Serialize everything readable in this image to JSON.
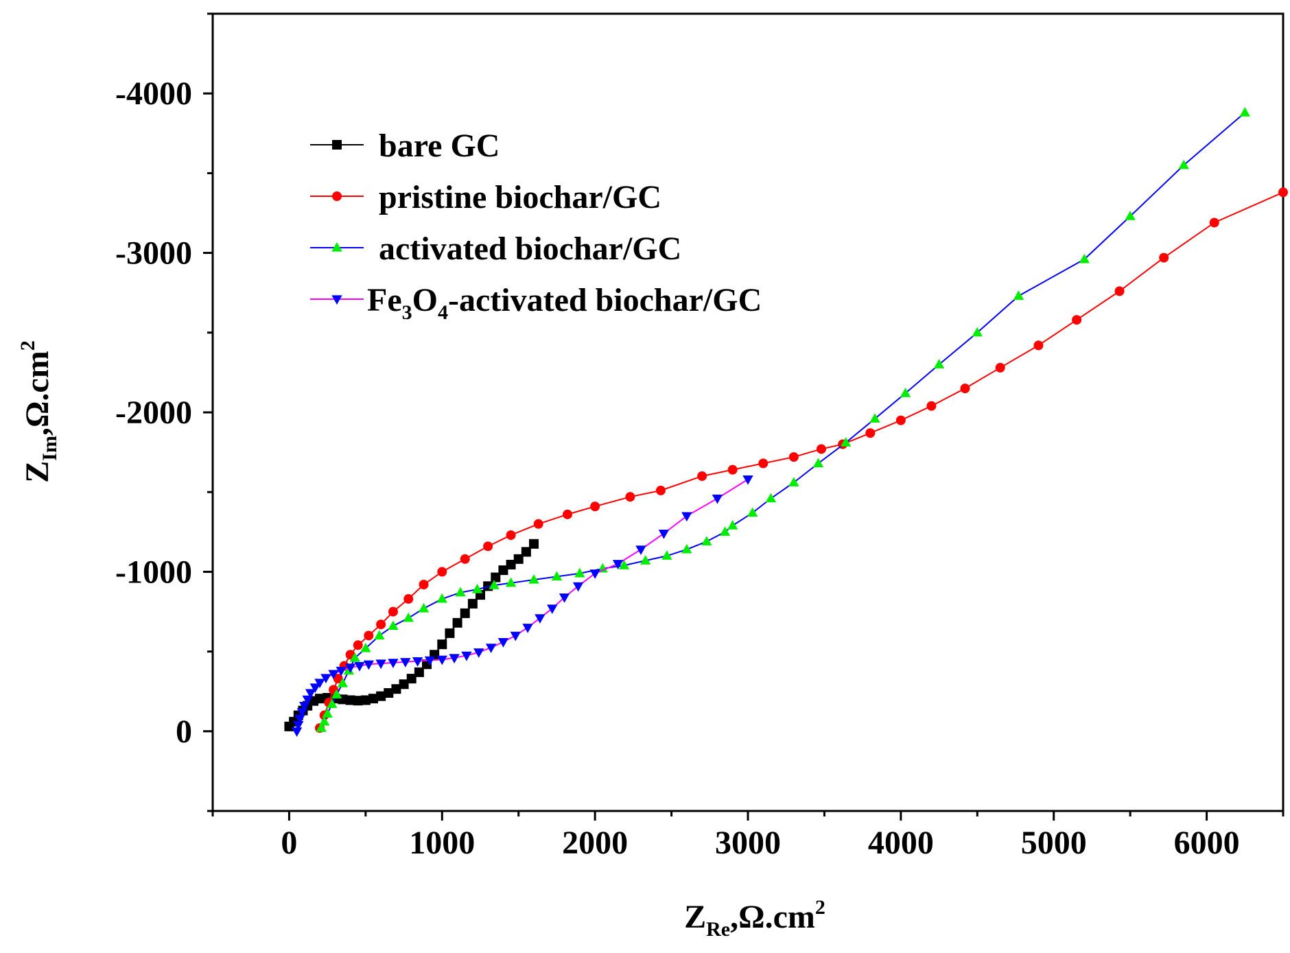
{
  "chart_data": {
    "type": "scatter",
    "title": "",
    "xlabel": {
      "main": "Z",
      "sub": "Re",
      "rest": ",Ω.cm",
      "sup": "2"
    },
    "ylabel": {
      "main": "Z",
      "sub": "Im",
      "rest": ",Ω.cm",
      "sup": "2"
    },
    "xlim": [
      -500,
      6500
    ],
    "ylim": [
      500,
      -4500
    ],
    "x_ticks": [
      0,
      1000,
      2000,
      3000,
      4000,
      5000,
      6000
    ],
    "x_tick_labels": [
      "0",
      "1000",
      "2000",
      "3000",
      "4000",
      "5000",
      "6000"
    ],
    "y_ticks": [
      0,
      -1000,
      -2000,
      -3000,
      -4000
    ],
    "y_tick_labels": [
      "0",
      "-1000",
      "-2000",
      "-3000",
      "-4000"
    ],
    "grid": false,
    "legend_position": "top-left",
    "legend": [
      {
        "label": "bare GC"
      },
      {
        "label": "pristine biochar/GC"
      },
      {
        "label": "activated biochar/GC"
      },
      {
        "label_parts": [
          "Fe",
          "3",
          "O",
          "4",
          "-activated biochar/GC"
        ]
      }
    ],
    "series": [
      {
        "name": "bare GC",
        "line_color": "#000000",
        "marker_color": "#000000",
        "marker": "square",
        "points": [
          [
            0,
            -30
          ],
          [
            30,
            -60
          ],
          [
            60,
            -100
          ],
          [
            90,
            -130
          ],
          [
            120,
            -160
          ],
          [
            160,
            -190
          ],
          [
            200,
            -205
          ],
          [
            250,
            -210
          ],
          [
            300,
            -205
          ],
          [
            350,
            -200
          ],
          [
            400,
            -195
          ],
          [
            450,
            -192
          ],
          [
            500,
            -195
          ],
          [
            550,
            -205
          ],
          [
            600,
            -220
          ],
          [
            650,
            -240
          ],
          [
            700,
            -265
          ],
          [
            750,
            -295
          ],
          [
            800,
            -330
          ],
          [
            850,
            -370
          ],
          [
            900,
            -420
          ],
          [
            950,
            -480
          ],
          [
            1000,
            -545
          ],
          [
            1050,
            -615
          ],
          [
            1100,
            -680
          ],
          [
            1150,
            -740
          ],
          [
            1200,
            -800
          ],
          [
            1250,
            -855
          ],
          [
            1300,
            -910
          ],
          [
            1350,
            -965
          ],
          [
            1400,
            -1010
          ],
          [
            1450,
            -1045
          ],
          [
            1500,
            -1080
          ],
          [
            1550,
            -1125
          ],
          [
            1600,
            -1175
          ]
        ]
      },
      {
        "name": "pristine biochar/GC",
        "line_color": "#ff0000",
        "marker_color": "#ff0000",
        "marker": "circle",
        "points": [
          [
            200,
            -20
          ],
          [
            230,
            -100
          ],
          [
            260,
            -180
          ],
          [
            290,
            -260
          ],
          [
            320,
            -330
          ],
          [
            360,
            -410
          ],
          [
            400,
            -480
          ],
          [
            450,
            -540
          ],
          [
            520,
            -600
          ],
          [
            600,
            -670
          ],
          [
            680,
            -750
          ],
          [
            780,
            -830
          ],
          [
            880,
            -920
          ],
          [
            1000,
            -1000
          ],
          [
            1150,
            -1080
          ],
          [
            1300,
            -1160
          ],
          [
            1450,
            -1230
          ],
          [
            1630,
            -1300
          ],
          [
            1820,
            -1360
          ],
          [
            2000,
            -1410
          ],
          [
            2230,
            -1470
          ],
          [
            2430,
            -1510
          ],
          [
            2700,
            -1600
          ],
          [
            2900,
            -1640
          ],
          [
            3100,
            -1680
          ],
          [
            3300,
            -1720
          ],
          [
            3480,
            -1770
          ],
          [
            3620,
            -1800
          ],
          [
            3800,
            -1870
          ],
          [
            4000,
            -1950
          ],
          [
            4200,
            -2040
          ],
          [
            4420,
            -2150
          ],
          [
            4650,
            -2280
          ],
          [
            4900,
            -2420
          ],
          [
            5150,
            -2580
          ],
          [
            5430,
            -2760
          ],
          [
            5720,
            -2970
          ],
          [
            6050,
            -3190
          ],
          [
            6500,
            -3380
          ]
        ]
      },
      {
        "name": "activated biochar/GC",
        "line_color": "#0000ff",
        "marker_color": "#00ee00",
        "marker": "triangle-up",
        "points": [
          [
            210,
            -20
          ],
          [
            230,
            -60
          ],
          [
            250,
            -110
          ],
          [
            280,
            -170
          ],
          [
            310,
            -230
          ],
          [
            350,
            -300
          ],
          [
            390,
            -380
          ],
          [
            430,
            -460
          ],
          [
            500,
            -520
          ],
          [
            590,
            -600
          ],
          [
            680,
            -660
          ],
          [
            780,
            -710
          ],
          [
            880,
            -770
          ],
          [
            1000,
            -830
          ],
          [
            1120,
            -870
          ],
          [
            1230,
            -890
          ],
          [
            1340,
            -915
          ],
          [
            1450,
            -930
          ],
          [
            1600,
            -950
          ],
          [
            1750,
            -970
          ],
          [
            1900,
            -990
          ],
          [
            2050,
            -1020
          ],
          [
            2190,
            -1040
          ],
          [
            2330,
            -1070
          ],
          [
            2470,
            -1100
          ],
          [
            2600,
            -1140
          ],
          [
            2730,
            -1190
          ],
          [
            2850,
            -1250
          ],
          [
            2900,
            -1290
          ],
          [
            3030,
            -1370
          ],
          [
            3150,
            -1460
          ],
          [
            3300,
            -1560
          ],
          [
            3460,
            -1680
          ],
          [
            3640,
            -1810
          ],
          [
            3830,
            -1960
          ],
          [
            4030,
            -2120
          ],
          [
            4250,
            -2300
          ],
          [
            4500,
            -2500
          ],
          [
            4770,
            -2730
          ],
          [
            5200,
            -2960
          ],
          [
            5500,
            -3230
          ],
          [
            5850,
            -3550
          ],
          [
            6250,
            -3880
          ]
        ]
      },
      {
        "name": "Fe3O4-activated biochar/GC",
        "line_color": "#ff00ff",
        "marker_color": "#0000ff",
        "marker": "triangle-down",
        "points": [
          [
            50,
            0
          ],
          [
            60,
            -40
          ],
          [
            70,
            -80
          ],
          [
            85,
            -120
          ],
          [
            100,
            -160
          ],
          [
            120,
            -200
          ],
          [
            140,
            -240
          ],
          [
            170,
            -275
          ],
          [
            200,
            -305
          ],
          [
            240,
            -335
          ],
          [
            290,
            -360
          ],
          [
            340,
            -380
          ],
          [
            400,
            -400
          ],
          [
            460,
            -410
          ],
          [
            520,
            -420
          ],
          [
            600,
            -425
          ],
          [
            680,
            -430
          ],
          [
            760,
            -435
          ],
          [
            840,
            -440
          ],
          [
            920,
            -445
          ],
          [
            1000,
            -450
          ],
          [
            1080,
            -460
          ],
          [
            1160,
            -475
          ],
          [
            1240,
            -495
          ],
          [
            1320,
            -525
          ],
          [
            1400,
            -560
          ],
          [
            1480,
            -600
          ],
          [
            1560,
            -650
          ],
          [
            1640,
            -710
          ],
          [
            1720,
            -770
          ],
          [
            1800,
            -840
          ],
          [
            1890,
            -910
          ],
          [
            2000,
            -990
          ],
          [
            2150,
            -1050
          ],
          [
            2300,
            -1140
          ],
          [
            2450,
            -1240
          ],
          [
            2600,
            -1350
          ],
          [
            2800,
            -1460
          ],
          [
            3000,
            -1580
          ]
        ]
      }
    ]
  }
}
